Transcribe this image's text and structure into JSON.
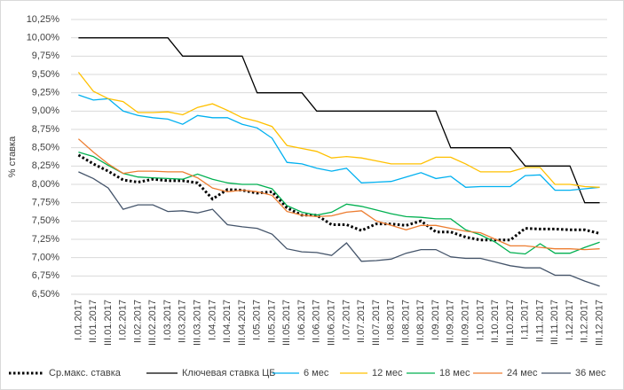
{
  "chart_data": {
    "type": "line",
    "ylabel": "% ставка",
    "categories": [
      "I.01.2017",
      "II.01.2017",
      "III.01.2017",
      "I.02.2017",
      "II.02.2017",
      "III.02.2017",
      "I.03.2017",
      "II.03.2017",
      "III.03.2017",
      "I.04.2017",
      "II.04.2017",
      "III.04.2017",
      "I.05.2017",
      "II.05.2017",
      "III.05.2017",
      "I.06.2017",
      "II.06.2017",
      "III.06.2017",
      "I.07.2017",
      "II.07.2017",
      "III.07.2017",
      "I.08.2017",
      "II.08.2017",
      "III.08.2017",
      "I.09.2017",
      "II.09.2017",
      "III.09.2017",
      "I.10.2017",
      "II.10.2017",
      "III.10.2017",
      "I.11.2017",
      "II.11.2017",
      "III.11.2017",
      "I.12.2017",
      "II.12.2017",
      "III.12.2017"
    ],
    "series": [
      {
        "name": "Ср.макс. ставка",
        "color": "#000000",
        "style": "dotted",
        "values": [
          8.4,
          8.28,
          8.18,
          8.06,
          8.03,
          8.07,
          8.05,
          8.05,
          8.02,
          7.8,
          7.93,
          7.92,
          7.88,
          7.9,
          7.68,
          7.58,
          7.58,
          7.45,
          7.45,
          7.37,
          7.46,
          7.46,
          7.44,
          7.5,
          7.35,
          7.35,
          7.28,
          7.24,
          7.24,
          7.24,
          7.4,
          7.39,
          7.39,
          7.38,
          7.38,
          7.33
        ]
      },
      {
        "name": "Ключевая ставка ЦБ",
        "color": "#000000",
        "style": "solid",
        "values": [
          10.0,
          10.0,
          10.0,
          10.0,
          10.0,
          10.0,
          10.0,
          9.75,
          9.75,
          9.75,
          9.75,
          9.75,
          9.25,
          9.25,
          9.25,
          9.25,
          9.0,
          9.0,
          9.0,
          9.0,
          9.0,
          9.0,
          9.0,
          9.0,
          9.0,
          8.5,
          8.5,
          8.5,
          8.5,
          8.5,
          8.25,
          8.25,
          8.25,
          8.25,
          7.75,
          7.75
        ]
      },
      {
        "name": "6 мес",
        "color": "#00b0f0",
        "style": "solid",
        "values": [
          9.22,
          9.15,
          9.17,
          9.0,
          8.94,
          8.91,
          8.89,
          8.82,
          8.94,
          8.91,
          8.91,
          8.82,
          8.77,
          8.63,
          8.3,
          8.28,
          8.22,
          8.18,
          8.22,
          8.02,
          8.03,
          8.04,
          8.1,
          8.16,
          8.08,
          8.11,
          7.96,
          7.97,
          7.97,
          7.97,
          8.12,
          8.13,
          7.92,
          7.92,
          7.94,
          7.96
        ]
      },
      {
        "name": "12 мес",
        "color": "#ffc000",
        "style": "solid",
        "values": [
          9.53,
          9.27,
          9.17,
          9.13,
          8.98,
          8.98,
          8.99,
          8.95,
          9.05,
          9.1,
          9.01,
          8.91,
          8.86,
          8.79,
          8.53,
          8.49,
          8.45,
          8.36,
          8.38,
          8.36,
          8.32,
          8.28,
          8.28,
          8.28,
          8.37,
          8.37,
          8.28,
          8.17,
          8.17,
          8.17,
          8.23,
          8.23,
          8.0,
          8.0,
          7.97,
          7.96
        ]
      },
      {
        "name": "18 мес",
        "color": "#00b050",
        "style": "solid",
        "values": [
          8.44,
          8.38,
          8.26,
          8.15,
          8.1,
          8.09,
          8.08,
          8.07,
          8.14,
          8.07,
          8.02,
          8.0,
          8.0,
          7.94,
          7.71,
          7.62,
          7.58,
          7.62,
          7.73,
          7.7,
          7.65,
          7.6,
          7.56,
          7.55,
          7.53,
          7.53,
          7.38,
          7.31,
          7.21,
          7.07,
          7.05,
          7.19,
          7.06,
          7.06,
          7.14,
          7.21
        ]
      },
      {
        "name": "24 мес",
        "color": "#ed7d31",
        "style": "solid",
        "values": [
          8.62,
          8.44,
          8.28,
          8.15,
          8.18,
          8.18,
          8.17,
          8.17,
          8.09,
          7.95,
          7.9,
          7.92,
          7.9,
          7.85,
          7.63,
          7.58,
          7.56,
          7.57,
          7.62,
          7.64,
          7.5,
          7.44,
          7.38,
          7.44,
          7.44,
          7.4,
          7.36,
          7.34,
          7.25,
          7.16,
          7.16,
          7.14,
          7.12,
          7.12,
          7.11,
          7.12
        ]
      },
      {
        "name": "36 мес",
        "color": "#44546a",
        "style": "solid",
        "values": [
          8.17,
          8.08,
          7.95,
          7.66,
          7.72,
          7.72,
          7.63,
          7.64,
          7.61,
          7.66,
          7.45,
          7.42,
          7.4,
          7.32,
          7.12,
          7.08,
          7.07,
          7.03,
          7.2,
          6.95,
          6.96,
          6.98,
          7.06,
          7.11,
          7.11,
          7.01,
          6.99,
          6.99,
          6.94,
          6.89,
          6.86,
          6.86,
          6.76,
          6.76,
          6.68,
          6.61
        ]
      }
    ],
    "ylim": [
      6.5,
      10.25
    ],
    "yticks": [
      {
        "value": 6.5,
        "label": "6,50%"
      },
      {
        "value": 6.75,
        "label": "6,75%"
      },
      {
        "value": 7.0,
        "label": "7,00%"
      },
      {
        "value": 7.25,
        "label": "7,25%"
      },
      {
        "value": 7.5,
        "label": "7,50%"
      },
      {
        "value": 7.75,
        "label": "7,75%"
      },
      {
        "value": 8.0,
        "label": "8,00%"
      },
      {
        "value": 8.25,
        "label": "8,25%"
      },
      {
        "value": 8.5,
        "label": "8,50%"
      },
      {
        "value": 8.75,
        "label": "8,75%"
      },
      {
        "value": 9.0,
        "label": "9,00%"
      },
      {
        "value": 9.25,
        "label": "9,25%"
      },
      {
        "value": 9.5,
        "label": "9,50%"
      },
      {
        "value": 9.75,
        "label": "9,75%"
      },
      {
        "value": 10.0,
        "label": "10,00%"
      },
      {
        "value": 10.25,
        "label": "10,25%"
      }
    ],
    "grid": true,
    "legend": "bottom"
  }
}
